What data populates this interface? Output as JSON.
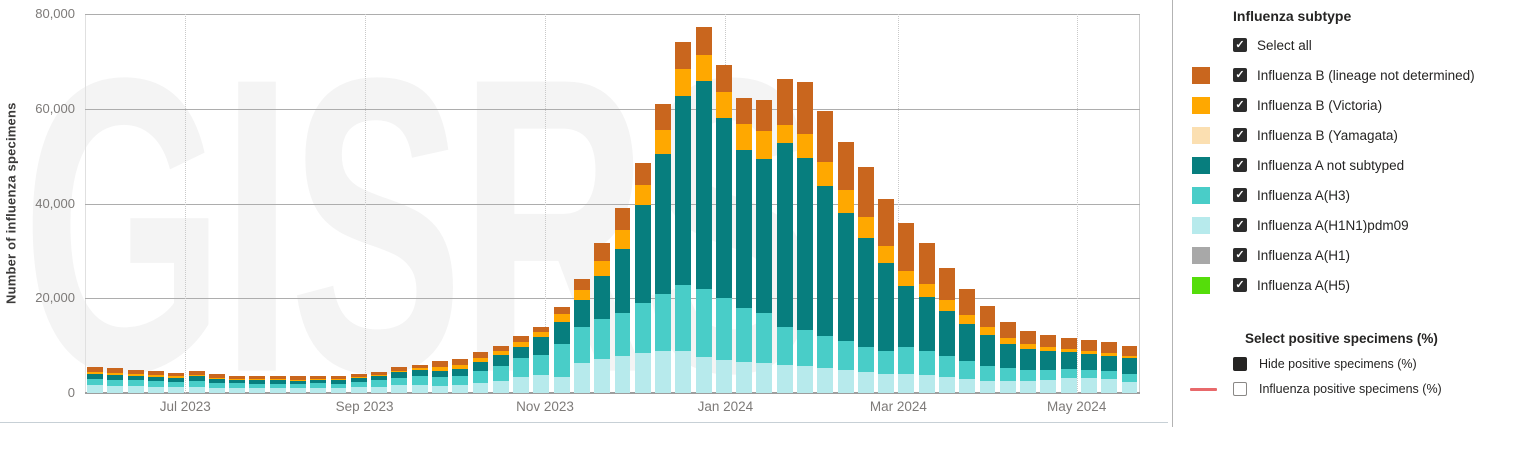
{
  "watermark": "GISRS",
  "chart_data": {
    "type": "bar",
    "stacked": true,
    "ylabel": "Number of influenza specimens",
    "ylim": [
      0,
      80000
    ],
    "grid": true,
    "yticks": [
      {
        "value": 0,
        "label": "0"
      },
      {
        "value": 20000,
        "label": "20,000"
      },
      {
        "value": 40000,
        "label": "40,000"
      },
      {
        "value": 60000,
        "label": "60,000"
      },
      {
        "value": 80000,
        "label": "80,000"
      }
    ],
    "xticks": [
      {
        "label": "Jul 2023",
        "pos_pct": 9.5
      },
      {
        "label": "Sep 2023",
        "pos_pct": 26.5
      },
      {
        "label": "Nov 2023",
        "pos_pct": 43.6
      },
      {
        "label": "Jan 2024",
        "pos_pct": 60.7
      },
      {
        "label": "Mar 2024",
        "pos_pct": 77.1
      },
      {
        "label": "May 2024",
        "pos_pct": 94.0
      }
    ],
    "x_unit": "week (Jun 2023 - May 2024, 52 weekly bars)",
    "series": [
      {
        "name": "Influenza A(H1N1)pdm09",
        "color": "#B7EAEC",
        "values": [
          1600,
          1500,
          1400,
          1350,
          1250,
          1350,
          1150,
          1100,
          1050,
          1050,
          1000,
          1080,
          1050,
          1200,
          1350,
          1600,
          1650,
          1550,
          1700,
          2050,
          2600,
          3450,
          3700,
          3350,
          6300,
          7200,
          7800,
          8400,
          8900,
          8800,
          7500,
          7000,
          6500,
          6300,
          5900,
          5700,
          5300,
          4900,
          4500,
          4100,
          4000,
          3700,
          3300,
          2900,
          2600,
          2500,
          2600,
          2800,
          3200,
          3100,
          2900,
          2400
        ]
      },
      {
        "name": "Influenza A(H3)",
        "color": "#49CDC8",
        "values": [
          1350,
          1300,
          1250,
          1150,
          1100,
          1200,
          1000,
          950,
          900,
          920,
          900,
          950,
          920,
          1100,
          1300,
          1650,
          1850,
          1900,
          1900,
          2500,
          3100,
          3900,
          4250,
          7100,
          7700,
          8400,
          9000,
          10500,
          12000,
          14000,
          14500,
          13000,
          11500,
          10500,
          8100,
          7600,
          6800,
          6000,
          5300,
          4700,
          5700,
          5200,
          4500,
          3800,
          3200,
          2700,
          2300,
          2100,
          1900,
          1800,
          1700,
          1600
        ]
      },
      {
        "name": "Influenza A not subtyped",
        "color": "#077E7E",
        "values": [
          1100,
          1050,
          1000,
          950,
          880,
          950,
          820,
          740,
          730,
          720,
          700,
          740,
          720,
          800,
          900,
          1150,
          1300,
          1250,
          1400,
          1900,
          2250,
          2450,
          3900,
          4600,
          5600,
          9000,
          13500,
          20700,
          29500,
          40000,
          43800,
          38000,
          33200,
          32500,
          38700,
          36300,
          31500,
          27000,
          23000,
          18600,
          12800,
          11300,
          9500,
          7800,
          6400,
          5100,
          4300,
          3900,
          3500,
          3400,
          3300,
          3300
        ]
      },
      {
        "name": "Influenza B (Victoria)",
        "color": "#FFA800",
        "values": [
          350,
          330,
          300,
          280,
          270,
          300,
          250,
          230,
          220,
          220,
          220,
          230,
          220,
          250,
          280,
          350,
          400,
          900,
          900,
          900,
          1000,
          1050,
          1000,
          1550,
          2100,
          3300,
          4200,
          4300,
          5200,
          5500,
          5500,
          5500,
          5500,
          6000,
          3800,
          5100,
          5200,
          5000,
          4400,
          3600,
          3200,
          2900,
          2400,
          2000,
          1700,
          1300,
          1100,
          900,
          600,
          500,
          500,
          500
        ]
      },
      {
        "name": "Influenza B (lineage not determined)",
        "color": "#C9661E",
        "values": [
          1100,
          1020,
          950,
          870,
          800,
          900,
          780,
          680,
          700,
          690,
          680,
          700,
          690,
          650,
          670,
          750,
          800,
          1100,
          1300,
          1250,
          1050,
          1150,
          1050,
          1600,
          2300,
          3700,
          4500,
          4700,
          5400,
          5700,
          5900,
          5800,
          5500,
          6500,
          9800,
          11000,
          10700,
          10000,
          10600,
          10000,
          10100,
          8500,
          6800,
          5500,
          4500,
          3400,
          2900,
          2500,
          2500,
          2500,
          2400,
          2200
        ]
      }
    ]
  },
  "legend": {
    "subtype": {
      "title": "Influenza subtype",
      "items": [
        {
          "label": "Select all",
          "checked": true,
          "swatch": null
        },
        {
          "label": "Influenza B (lineage not determined)",
          "checked": true,
          "swatch": "#C9661E"
        },
        {
          "label": "Influenza B (Victoria)",
          "checked": true,
          "swatch": "#FFA800"
        },
        {
          "label": "Influenza B (Yamagata)",
          "checked": true,
          "swatch": "#FBDFB1"
        },
        {
          "label": "Influenza A not subtyped",
          "checked": true,
          "swatch": "#077E7E"
        },
        {
          "label": "Influenza A(H3)",
          "checked": true,
          "swatch": "#49CDC8"
        },
        {
          "label": "Influenza A(H1N1)pdm09",
          "checked": true,
          "swatch": "#B7EAEC"
        },
        {
          "label": "Influenza A(H1)",
          "checked": true,
          "swatch": "#A8A8A8"
        },
        {
          "label": "Influenza A(H5)",
          "checked": true,
          "swatch": "#55DD0A"
        }
      ]
    },
    "positive": {
      "title": "Select positive specimens (%)",
      "items": [
        {
          "label": "Hide positive specimens (%)",
          "checkbox_style": "filled",
          "line_swatch": null
        },
        {
          "label": "Influenza positive specimens (%)",
          "checkbox_style": "unchecked",
          "line_swatch": "#E8696B"
        }
      ]
    }
  }
}
